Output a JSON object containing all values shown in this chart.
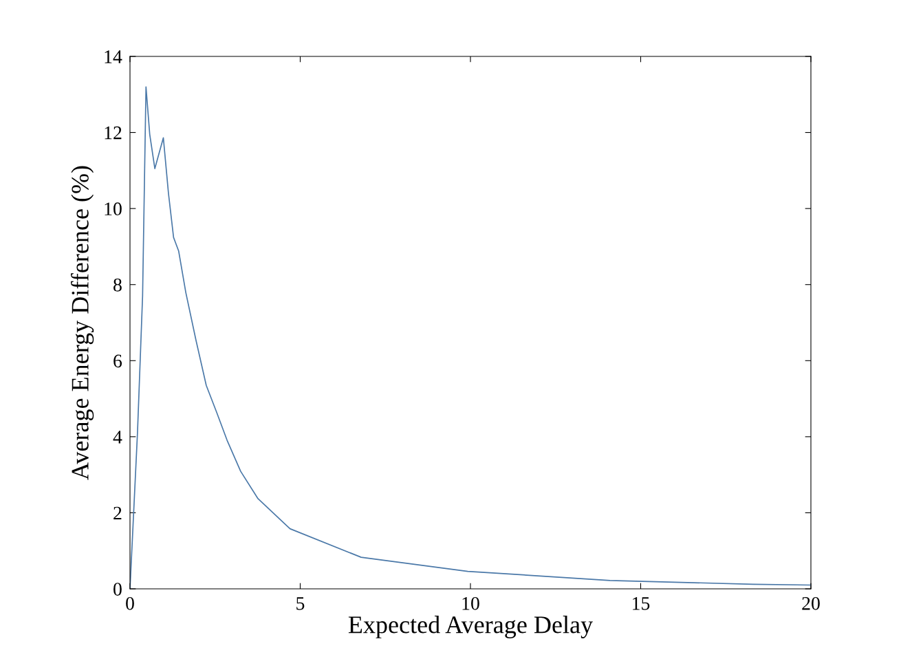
{
  "chart_data": {
    "type": "line",
    "xlabel": "Expected Average Delay",
    "ylabel": "Average Energy Difference (%)",
    "x": [
      0,
      0.22,
      0.37,
      0.47,
      0.58,
      0.73,
      0.98,
      1.13,
      1.28,
      1.43,
      1.64,
      1.94,
      2.24,
      2.55,
      2.85,
      3.25,
      3.76,
      4.7,
      6.79,
      9.92,
      14.1,
      18.3,
      20
    ],
    "series": [
      {
        "color": "#4a78a8",
        "values": [
          0,
          4.1,
          7.7,
          13.2,
          11.95,
          11.05,
          11.86,
          10.4,
          9.24,
          8.88,
          7.79,
          6.53,
          5.35,
          4.63,
          3.91,
          3.09,
          2.37,
          1.58,
          0.83,
          0.46,
          0.22,
          0.12,
          0.1
        ]
      }
    ],
    "xlim": [
      0,
      20
    ],
    "ylim": [
      0,
      14
    ],
    "xticks": [
      0,
      5,
      10,
      15,
      20
    ],
    "yticks": [
      0,
      2,
      4,
      6,
      8,
      10,
      12,
      14
    ],
    "grid": false
  }
}
